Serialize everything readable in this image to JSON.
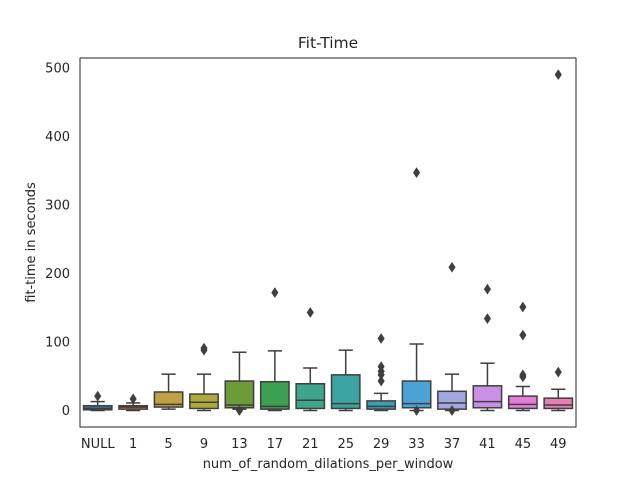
{
  "chart_data": {
    "type": "box",
    "title": "Fit-Time",
    "xlabel": "num_of_random_dilations_per_window",
    "ylabel": "fit-time in seconds",
    "ylim": [
      -25,
      515
    ],
    "yticks": [
      0,
      100,
      200,
      300,
      400,
      500
    ],
    "grid": false,
    "categories": [
      "NULL",
      "1",
      "5",
      "9",
      "13",
      "17",
      "21",
      "25",
      "29",
      "33",
      "37",
      "41",
      "45",
      "49"
    ],
    "boxes": [
      {
        "category": "NULL",
        "color": "#3274a1",
        "whislo": 0,
        "q1": 1,
        "med": 3,
        "q3": 7,
        "whishi": 13,
        "fliers": [
          21
        ]
      },
      {
        "category": "1",
        "color": "#e1812c",
        "whislo": 0,
        "q1": 2,
        "med": 5,
        "q3": 7,
        "whishi": 11,
        "fliers": [
          17
        ]
      },
      {
        "category": "5",
        "color": "#c0a043",
        "whislo": 2,
        "q1": 5,
        "med": 9,
        "q3": 27,
        "whishi": 53,
        "fliers": []
      },
      {
        "category": "9",
        "color": "#aeab3b",
        "whislo": 0,
        "q1": 3,
        "med": 12,
        "q3": 24,
        "whishi": 53,
        "fliers": [
          88,
          91
        ]
      },
      {
        "category": "13",
        "color": "#6c9b3a",
        "whislo": 2,
        "q1": 4,
        "med": 8,
        "q3": 43,
        "whishi": 85,
        "fliers": [
          0
        ]
      },
      {
        "category": "17",
        "color": "#3ba150",
        "whislo": 0,
        "q1": 2,
        "med": 6,
        "q3": 42,
        "whishi": 87,
        "fliers": [
          172
        ]
      },
      {
        "category": "21",
        "color": "#3da68a",
        "whislo": 0,
        "q1": 3,
        "med": 15,
        "q3": 39,
        "whishi": 62,
        "fliers": [
          143
        ]
      },
      {
        "category": "25",
        "color": "#3ba3a0",
        "whislo": 0,
        "q1": 3,
        "med": 10,
        "q3": 52,
        "whishi": 88,
        "fliers": []
      },
      {
        "category": "29",
        "color": "#3d9fb1",
        "whislo": 0,
        "q1": 2,
        "med": 6,
        "q3": 14,
        "whishi": 25,
        "fliers": [
          43,
          52,
          57,
          64,
          105
        ]
      },
      {
        "category": "33",
        "color": "#4aa3d4",
        "whislo": 0,
        "q1": 4,
        "med": 10,
        "q3": 43,
        "whishi": 97,
        "fliers": [
          0,
          347
        ]
      },
      {
        "category": "37",
        "color": "#a2a9e0",
        "whislo": 0,
        "q1": 2,
        "med": 11,
        "q3": 28,
        "whishi": 53,
        "fliers": [
          0,
          209
        ]
      },
      {
        "category": "41",
        "color": "#cc8fe6",
        "whislo": 0,
        "q1": 4,
        "med": 13,
        "q3": 36,
        "whishi": 69,
        "fliers": [
          134,
          177
        ]
      },
      {
        "category": "45",
        "color": "#e37fd8",
        "whislo": 0,
        "q1": 3,
        "med": 9,
        "q3": 21,
        "whishi": 35,
        "fliers": [
          49,
          52,
          110,
          151
        ]
      },
      {
        "category": "49",
        "color": "#e57fb4",
        "whislo": 0,
        "q1": 3,
        "med": 8,
        "q3": 18,
        "whishi": 31,
        "fliers": [
          56,
          490
        ]
      }
    ]
  }
}
